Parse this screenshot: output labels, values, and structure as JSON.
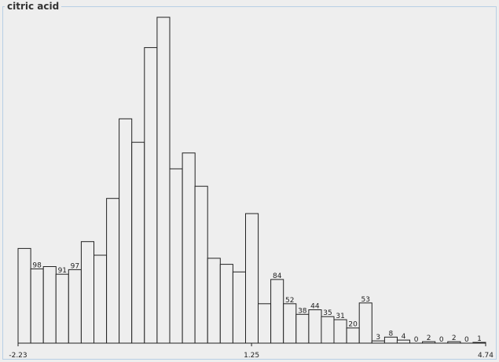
{
  "panel": {
    "title": "citric acid"
  },
  "chart_data": {
    "type": "bar",
    "title": "citric acid",
    "xlabel": "",
    "ylabel": "",
    "x_range": [
      -2.23,
      4.74
    ],
    "x_tick_labels": [
      "-2.23",
      "1.25",
      "4.74"
    ],
    "ylim": [
      0,
      430
    ],
    "values": [
      125,
      98,
      101,
      91,
      97,
      134,
      116,
      191,
      296,
      265,
      390,
      430,
      230,
      251,
      207,
      112,
      104,
      94,
      171,
      52,
      84,
      52,
      38,
      44,
      35,
      31,
      20,
      53,
      3,
      8,
      4,
      0,
      2,
      0,
      2,
      0,
      1
    ],
    "data_labels": {
      "1": "98",
      "3": "91",
      "4": "97",
      "20": "84",
      "21": "52",
      "22": "38",
      "23": "44",
      "24": "35",
      "25": "31",
      "26": "20",
      "27": "53",
      "28": "3",
      "29": "8",
      "30": "4",
      "31": "0",
      "32": "2",
      "33": "0",
      "34": "2",
      "35": "0",
      "36": "1"
    }
  }
}
